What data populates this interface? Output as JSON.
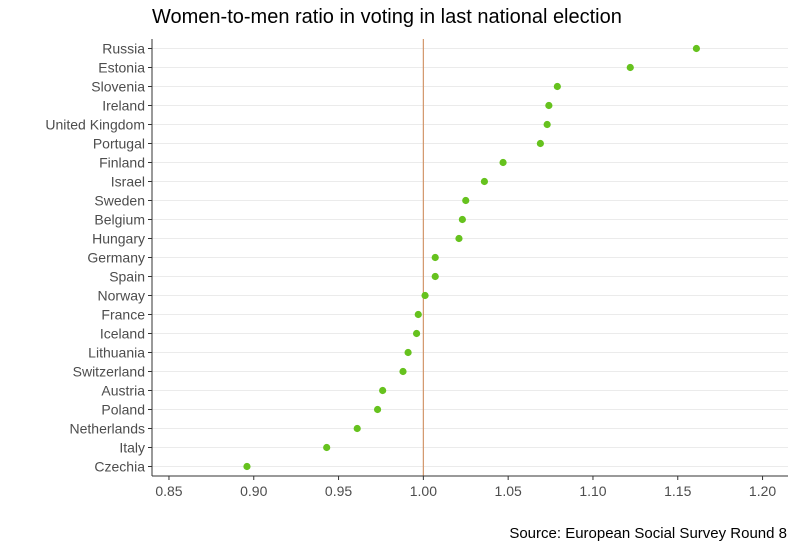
{
  "chart_data": {
    "type": "scatter",
    "title": "Women-to-men ratio in voting in last national election",
    "source": "Source: European Social Survey Round 8",
    "xlabel": "",
    "ylabel": "",
    "xlim": [
      0.84,
      1.215
    ],
    "xticks": [
      "0.85",
      "0.90",
      "0.95",
      "1.00",
      "1.05",
      "1.10",
      "1.15",
      "1.20"
    ],
    "reference_line": 1.0,
    "grid": true,
    "colors": {
      "point": "#66c21e",
      "reference_line": "#d2966a",
      "grid": "#ebebeb",
      "axis": "#333333"
    },
    "categories": [
      "Russia",
      "Estonia",
      "Slovenia",
      "Ireland",
      "United Kingdom",
      "Portugal",
      "Finland",
      "Israel",
      "Sweden",
      "Belgium",
      "Hungary",
      "Germany",
      "Spain",
      "Norway",
      "France",
      "Iceland",
      "Lithuania",
      "Switzerland",
      "Austria",
      "Poland",
      "Netherlands",
      "Italy",
      "Czechia"
    ],
    "values": [
      1.161,
      1.122,
      1.079,
      1.074,
      1.073,
      1.069,
      1.047,
      1.036,
      1.025,
      1.023,
      1.021,
      1.007,
      1.007,
      1.001,
      0.997,
      0.996,
      0.991,
      0.988,
      0.976,
      0.973,
      0.961,
      0.943,
      0.896
    ]
  }
}
